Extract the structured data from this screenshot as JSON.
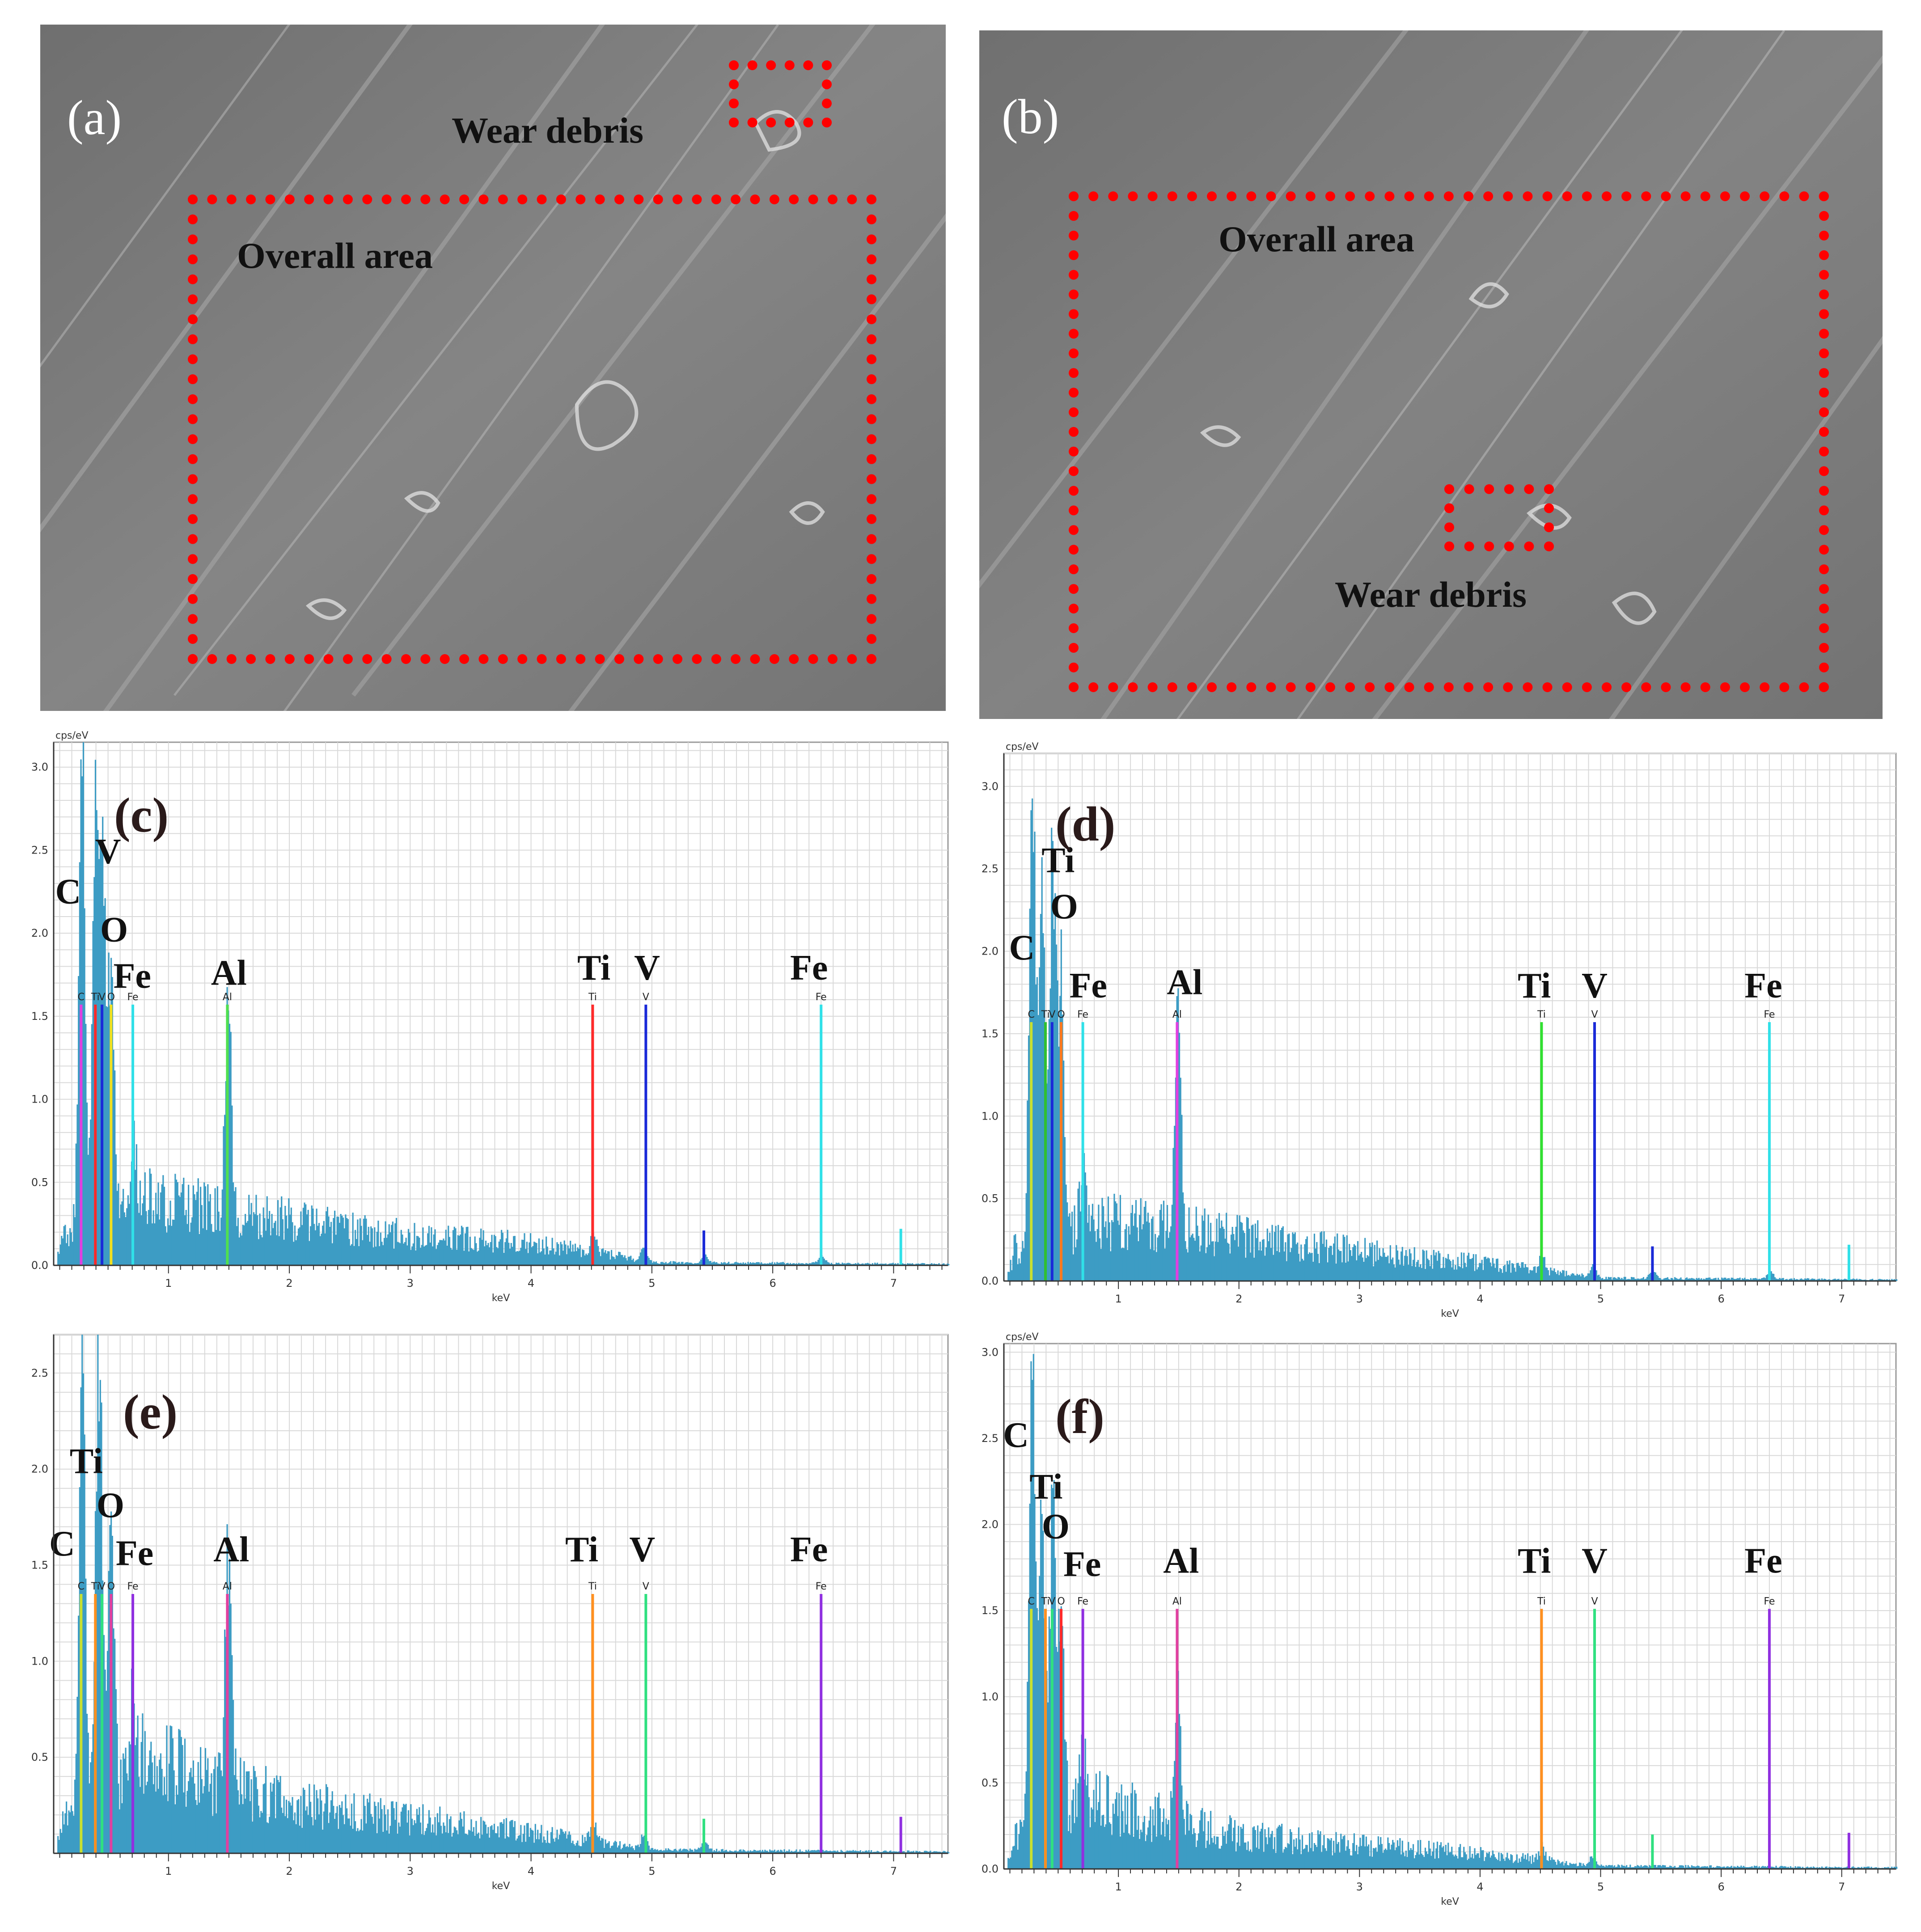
{
  "sem_panels": [
    {
      "letter": "(a)",
      "overall_label": "Overall area",
      "debris_label": "Wear debris"
    },
    {
      "letter": "(b)",
      "overall_label": "Overall area",
      "debris_label": "Wear debris"
    }
  ],
  "colors": {
    "spectrum": "#3d9cc4",
    "roi_box": "#ff0000",
    "grid": "#d9d9d9",
    "axis": "#333333"
  },
  "chart_data": [
    {
      "panel": "(c)",
      "type": "bar",
      "ylabel": "cps/eV",
      "xlabel": "keV",
      "xlim": [
        0.05,
        7.45
      ],
      "ylim": [
        0,
        3.15
      ],
      "xticks": [
        1,
        2,
        3,
        4,
        5,
        6,
        7
      ],
      "yticks": [
        0.0,
        0.5,
        1.0,
        1.5,
        2.0,
        2.5,
        3.0
      ],
      "spectrum_peaks": [
        [
          0.28,
          3.15
        ],
        [
          0.39,
          2.7
        ],
        [
          0.45,
          2.3
        ],
        [
          0.52,
          1.7
        ],
        [
          0.7,
          0.45
        ],
        [
          1.49,
          1.48
        ],
        [
          4.51,
          0.12
        ],
        [
          4.93,
          0.1
        ],
        [
          5.43,
          0.05
        ],
        [
          6.4,
          0.05
        ]
      ],
      "background": [
        [
          0.1,
          0.2
        ],
        [
          0.8,
          0.45
        ],
        [
          1.2,
          0.4
        ],
        [
          2.0,
          0.3
        ],
        [
          3.0,
          0.2
        ],
        [
          4.0,
          0.15
        ],
        [
          4.6,
          0.08
        ],
        [
          5.0,
          0.02
        ],
        [
          7.4,
          0.01
        ]
      ],
      "element_lines": [
        {
          "element": "C",
          "energy": 0.277,
          "color": "#e040e0",
          "height": 1.57
        },
        {
          "element": "Ti",
          "energy": 0.395,
          "color": "#ff2a2a",
          "height": 1.57
        },
        {
          "element": "V",
          "energy": 0.45,
          "color": "#1a2ad8",
          "height": 1.57
        },
        {
          "element": "O",
          "energy": 0.525,
          "color": "#f0e020",
          "height": 1.57
        },
        {
          "element": "Fe",
          "energy": 0.705,
          "color": "#30e0e8",
          "height": 1.57
        },
        {
          "element": "Al",
          "energy": 1.487,
          "color": "#50e050",
          "height": 1.57
        },
        {
          "element": "Ti",
          "energy": 4.51,
          "color": "#ff2a2a",
          "height": 1.57
        },
        {
          "element": "V",
          "energy": 4.95,
          "color": "#1a2ad8",
          "height": 1.57
        },
        {
          "element": "Fe",
          "energy": 6.4,
          "color": "#30e0e8",
          "height": 1.57
        }
      ],
      "minor_lines": [
        {
          "energy": 5.43,
          "color": "#1a2ad8",
          "height": 0.21
        },
        {
          "energy": 7.06,
          "color": "#30e0e8",
          "height": 0.22
        }
      ],
      "big_labels": [
        {
          "text": "C",
          "x": 0.17,
          "y": 2.18
        },
        {
          "text": "V",
          "x": 0.5,
          "y": 2.42
        },
        {
          "text": "O",
          "x": 0.55,
          "y": 1.95
        },
        {
          "text": "Fe",
          "x": 0.7,
          "y": 1.67
        },
        {
          "text": "Al",
          "x": 1.5,
          "y": 1.69
        },
        {
          "text": "Ti",
          "x": 4.52,
          "y": 1.72
        },
        {
          "text": "V",
          "x": 4.96,
          "y": 1.72
        },
        {
          "text": "Fe",
          "x": 6.3,
          "y": 1.72
        }
      ]
    },
    {
      "panel": "(d)",
      "type": "bar",
      "ylabel": "cps/eV",
      "xlabel": "keV",
      "xlim": [
        0.05,
        7.45
      ],
      "ylim": [
        0,
        3.2
      ],
      "xticks": [
        1,
        2,
        3,
        4,
        5,
        6,
        7
      ],
      "yticks": [
        0.0,
        0.5,
        1.0,
        1.5,
        2.0,
        2.5,
        3.0
      ],
      "spectrum_peaks": [
        [
          0.28,
          3.2
        ],
        [
          0.36,
          2.4
        ],
        [
          0.45,
          2.5
        ],
        [
          0.52,
          1.6
        ],
        [
          0.7,
          0.4
        ],
        [
          1.49,
          1.45
        ],
        [
          4.51,
          0.1
        ],
        [
          4.93,
          0.08
        ],
        [
          5.43,
          0.05
        ],
        [
          6.4,
          0.05
        ]
      ],
      "background": [
        [
          0.1,
          0.2
        ],
        [
          0.8,
          0.4
        ],
        [
          1.2,
          0.38
        ],
        [
          2.0,
          0.3
        ],
        [
          3.0,
          0.2
        ],
        [
          4.0,
          0.12
        ],
        [
          4.6,
          0.06
        ],
        [
          5.0,
          0.02
        ],
        [
          7.4,
          0.01
        ]
      ],
      "element_lines": [
        {
          "element": "C",
          "energy": 0.277,
          "color": "#c8e030",
          "height": 1.57
        },
        {
          "element": "Ti",
          "energy": 0.395,
          "color": "#30c030",
          "height": 1.57
        },
        {
          "element": "V",
          "energy": 0.45,
          "color": "#1a2ad8",
          "height": 1.57
        },
        {
          "element": "O",
          "energy": 0.525,
          "color": "#ff7a20",
          "height": 1.57
        },
        {
          "element": "Fe",
          "energy": 0.705,
          "color": "#30e0e8",
          "height": 1.57
        },
        {
          "element": "Al",
          "energy": 1.487,
          "color": "#e040e0",
          "height": 1.57
        },
        {
          "element": "Ti",
          "energy": 4.51,
          "color": "#30e030",
          "height": 1.57
        },
        {
          "element": "V",
          "energy": 4.95,
          "color": "#1a2ad8",
          "height": 1.57
        },
        {
          "element": "Fe",
          "energy": 6.4,
          "color": "#30e0e8",
          "height": 1.57
        }
      ],
      "minor_lines": [
        {
          "energy": 5.43,
          "color": "#1a2ad8",
          "height": 0.21
        },
        {
          "energy": 7.06,
          "color": "#30e0e8",
          "height": 0.22
        }
      ],
      "big_labels": [
        {
          "text": "Ti",
          "x": 0.5,
          "y": 2.48
        },
        {
          "text": "O",
          "x": 0.55,
          "y": 2.2
        },
        {
          "text": "C",
          "x": 0.2,
          "y": 1.95
        },
        {
          "text": "Fe",
          "x": 0.75,
          "y": 1.72
        },
        {
          "text": "Al",
          "x": 1.55,
          "y": 1.74
        },
        {
          "text": "Ti",
          "x": 4.45,
          "y": 1.72
        },
        {
          "text": "V",
          "x": 4.95,
          "y": 1.72
        },
        {
          "text": "Fe",
          "x": 6.35,
          "y": 1.72
        }
      ]
    },
    {
      "panel": "(e)",
      "type": "bar",
      "ylabel": "",
      "xlabel": "keV",
      "xlim": [
        0.05,
        7.45
      ],
      "ylim": [
        0,
        2.7
      ],
      "xticks": [
        1,
        2,
        3,
        4,
        5,
        6,
        7
      ],
      "yticks": [
        0.5,
        1.0,
        1.5,
        2.0,
        2.5
      ],
      "spectrum_peaks": [
        [
          0.28,
          2.7
        ],
        [
          0.42,
          2.7
        ],
        [
          0.52,
          1.4
        ],
        [
          0.7,
          0.45
        ],
        [
          1.49,
          1.4
        ],
        [
          4.51,
          0.1
        ],
        [
          4.93,
          0.08
        ],
        [
          5.43,
          0.05
        ]
      ],
      "background": [
        [
          0.1,
          0.2
        ],
        [
          0.8,
          0.55
        ],
        [
          1.2,
          0.45
        ],
        [
          2.0,
          0.3
        ],
        [
          3.0,
          0.2
        ],
        [
          4.0,
          0.12
        ],
        [
          4.6,
          0.06
        ],
        [
          5.0,
          0.02
        ],
        [
          7.4,
          0.01
        ]
      ],
      "element_lines": [
        {
          "element": "C",
          "energy": 0.277,
          "color": "#c8e030",
          "height": 1.35
        },
        {
          "element": "Ti",
          "energy": 0.395,
          "color": "#ff9020",
          "height": 1.35
        },
        {
          "element": "V",
          "energy": 0.45,
          "color": "#30e080",
          "height": 1.35
        },
        {
          "element": "O",
          "energy": 0.525,
          "color": "#e040a0",
          "height": 1.35
        },
        {
          "element": "Fe",
          "energy": 0.705,
          "color": "#9030e0",
          "height": 1.35
        },
        {
          "element": "Al",
          "energy": 1.487,
          "color": "#e040a0",
          "height": 1.35
        },
        {
          "element": "Ti",
          "energy": 4.51,
          "color": "#ff9020",
          "height": 1.35
        },
        {
          "element": "V",
          "energy": 4.95,
          "color": "#30e080",
          "height": 1.35
        },
        {
          "element": "Fe",
          "energy": 6.4,
          "color": "#9030e0",
          "height": 1.35
        }
      ],
      "minor_lines": [
        {
          "energy": 5.43,
          "color": "#30e080",
          "height": 0.18
        },
        {
          "energy": 7.06,
          "color": "#9030e0",
          "height": 0.19
        }
      ],
      "big_labels": [
        {
          "text": "Ti",
          "x": 0.32,
          "y": 1.98
        },
        {
          "text": "O",
          "x": 0.52,
          "y": 1.75
        },
        {
          "text": "C",
          "x": 0.12,
          "y": 1.55
        },
        {
          "text": "Fe",
          "x": 0.72,
          "y": 1.5
        },
        {
          "text": "Al",
          "x": 1.52,
          "y": 1.52
        },
        {
          "text": "Ti",
          "x": 4.42,
          "y": 1.52
        },
        {
          "text": "V",
          "x": 4.92,
          "y": 1.52
        },
        {
          "text": "Fe",
          "x": 6.3,
          "y": 1.52
        }
      ]
    },
    {
      "panel": "(f)",
      "type": "bar",
      "ylabel": "cps/eV",
      "xlabel": "keV",
      "xlim": [
        0.05,
        7.45
      ],
      "ylim": [
        0,
        3.05
      ],
      "xticks": [
        1,
        2,
        3,
        4,
        5,
        6,
        7
      ],
      "yticks": [
        0.0,
        0.5,
        1.0,
        1.5,
        2.0,
        2.5,
        3.0
      ],
      "spectrum_peaks": [
        [
          0.28,
          3.05
        ],
        [
          0.36,
          2.0
        ],
        [
          0.45,
          2.0
        ],
        [
          0.52,
          1.2
        ],
        [
          0.7,
          0.35
        ],
        [
          1.49,
          0.8
        ],
        [
          4.51,
          0.08
        ],
        [
          4.93,
          0.06
        ]
      ],
      "background": [
        [
          0.1,
          0.2
        ],
        [
          0.8,
          0.45
        ],
        [
          1.2,
          0.35
        ],
        [
          2.0,
          0.22
        ],
        [
          3.0,
          0.15
        ],
        [
          4.0,
          0.1
        ],
        [
          4.6,
          0.05
        ],
        [
          5.0,
          0.02
        ],
        [
          7.4,
          0.01
        ]
      ],
      "element_lines": [
        {
          "element": "C",
          "energy": 0.277,
          "color": "#c8e030",
          "height": 1.51
        },
        {
          "element": "Ti",
          "energy": 0.395,
          "color": "#ff9020",
          "height": 1.51
        },
        {
          "element": "V",
          "energy": 0.45,
          "color": "#30e080",
          "height": 1.51
        },
        {
          "element": "O",
          "energy": 0.525,
          "color": "#ff2a2a",
          "height": 1.51
        },
        {
          "element": "Fe",
          "energy": 0.705,
          "color": "#9030e0",
          "height": 1.51
        },
        {
          "element": "Al",
          "energy": 1.487,
          "color": "#e040a0",
          "height": 1.51
        },
        {
          "element": "Ti",
          "energy": 4.51,
          "color": "#ff9020",
          "height": 1.51
        },
        {
          "element": "V",
          "energy": 4.95,
          "color": "#30e080",
          "height": 1.51
        },
        {
          "element": "Fe",
          "energy": 6.4,
          "color": "#9030e0",
          "height": 1.51
        }
      ],
      "minor_lines": [
        {
          "energy": 5.43,
          "color": "#30e080",
          "height": 0.2
        },
        {
          "energy": 7.06,
          "color": "#9030e0",
          "height": 0.21
        }
      ],
      "big_labels": [
        {
          "text": "C",
          "x": 0.15,
          "y": 2.45
        },
        {
          "text": "Ti",
          "x": 0.4,
          "y": 2.15
        },
        {
          "text": "O",
          "x": 0.48,
          "y": 1.92
        },
        {
          "text": "Fe",
          "x": 0.7,
          "y": 1.7
        },
        {
          "text": "Al",
          "x": 1.52,
          "y": 1.72
        },
        {
          "text": "Ti",
          "x": 4.45,
          "y": 1.72
        },
        {
          "text": "V",
          "x": 4.95,
          "y": 1.72
        },
        {
          "text": "Fe",
          "x": 6.35,
          "y": 1.72
        }
      ]
    }
  ]
}
